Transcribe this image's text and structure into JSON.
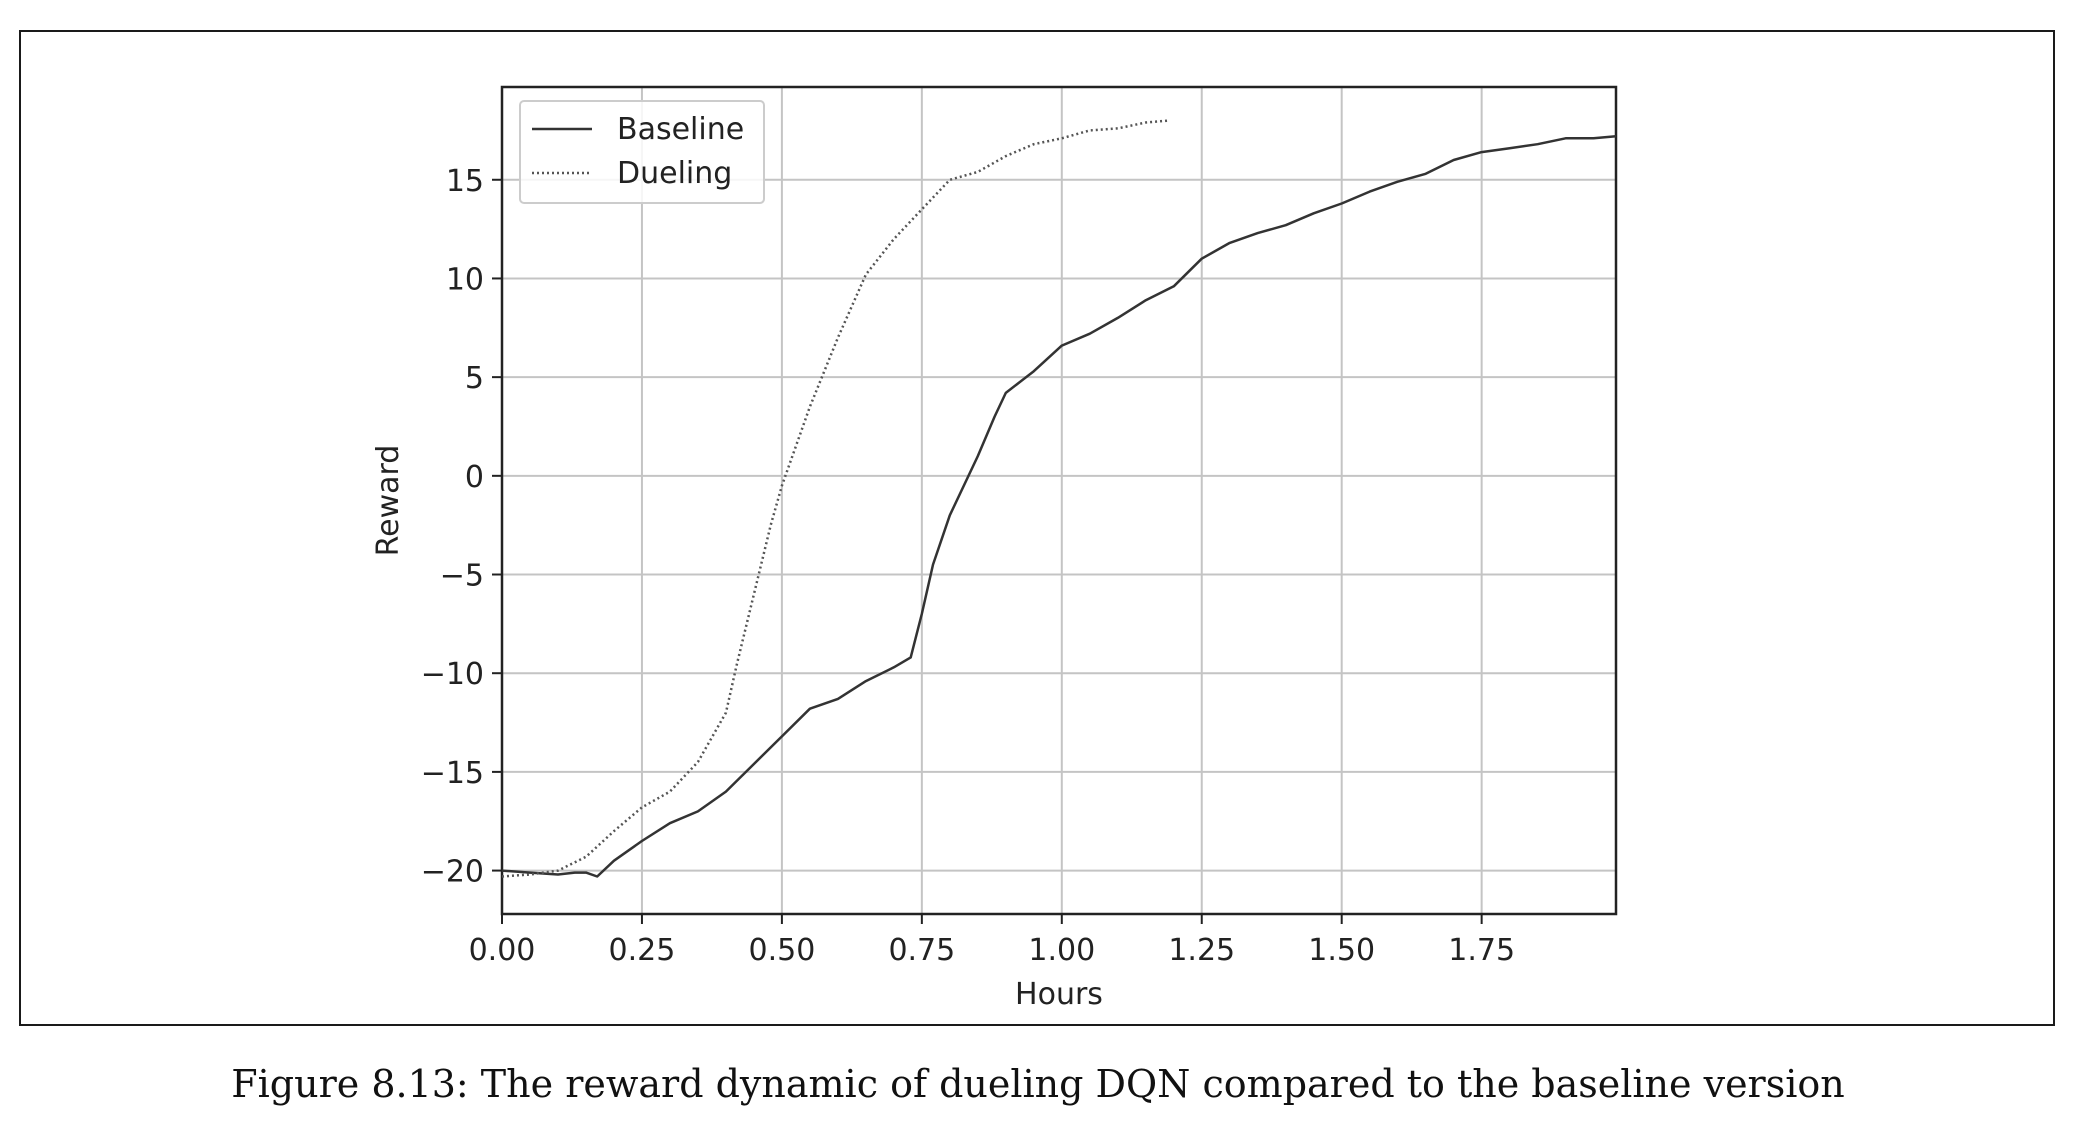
{
  "figure": {
    "caption": "Figure 8.13: The reward dynamic of dueling DQN compared to the baseline version"
  },
  "chart_data": {
    "type": "line",
    "title": "",
    "xlabel": "Hours",
    "ylabel": "Reward",
    "xlim": [
      0.0,
      1.99
    ],
    "ylim": [
      -22.2,
      19.7
    ],
    "xticks": [
      0.0,
      0.25,
      0.5,
      0.75,
      1.0,
      1.25,
      1.5,
      1.75
    ],
    "xtick_labels": [
      "0.00",
      "0.25",
      "0.50",
      "0.75",
      "1.00",
      "1.25",
      "1.50",
      "1.75"
    ],
    "yticks": [
      -20,
      -15,
      -10,
      -5,
      0,
      5,
      10,
      15
    ],
    "ytick_labels": [
      "−20",
      "−15",
      "−10",
      "−5",
      "0",
      "5",
      "10",
      "15"
    ],
    "grid": true,
    "legend_position": "top-left",
    "series": [
      {
        "name": "Baseline",
        "style": "solid",
        "color": "#333333",
        "x": [
          0.0,
          0.05,
          0.1,
          0.13,
          0.15,
          0.17,
          0.2,
          0.25,
          0.3,
          0.35,
          0.4,
          0.45,
          0.5,
          0.55,
          0.6,
          0.65,
          0.7,
          0.73,
          0.75,
          0.77,
          0.8,
          0.85,
          0.88,
          0.9,
          0.95,
          1.0,
          1.05,
          1.1,
          1.15,
          1.2,
          1.25,
          1.3,
          1.35,
          1.4,
          1.45,
          1.5,
          1.55,
          1.6,
          1.65,
          1.7,
          1.75,
          1.8,
          1.85,
          1.9,
          1.95,
          1.99
        ],
        "y": [
          -20.0,
          -20.1,
          -20.2,
          -20.1,
          -20.1,
          -20.3,
          -19.5,
          -18.5,
          -17.6,
          -17.0,
          -16.0,
          -14.6,
          -13.2,
          -11.8,
          -11.3,
          -10.4,
          -9.7,
          -9.2,
          -7.0,
          -4.5,
          -2.0,
          1.0,
          3.0,
          4.2,
          5.3,
          6.6,
          7.2,
          8.0,
          8.9,
          9.6,
          11.0,
          11.8,
          12.3,
          12.7,
          13.3,
          13.8,
          14.4,
          14.9,
          15.3,
          16.0,
          16.4,
          16.6,
          16.8,
          17.1,
          17.1,
          17.2
        ]
      },
      {
        "name": "Dueling",
        "style": "dotted",
        "color": "#555555",
        "x": [
          0.0,
          0.05,
          0.1,
          0.15,
          0.2,
          0.25,
          0.3,
          0.35,
          0.4,
          0.42,
          0.45,
          0.48,
          0.5,
          0.55,
          0.6,
          0.65,
          0.7,
          0.75,
          0.8,
          0.85,
          0.9,
          0.95,
          1.0,
          1.05,
          1.1,
          1.15,
          1.19
        ],
        "y": [
          -20.3,
          -20.2,
          -20.0,
          -19.3,
          -18.0,
          -16.8,
          -16.0,
          -14.5,
          -12.0,
          -9.5,
          -6.0,
          -2.5,
          -0.5,
          3.5,
          7.0,
          10.2,
          12.0,
          13.5,
          15.0,
          15.4,
          16.2,
          16.8,
          17.1,
          17.5,
          17.6,
          17.9,
          18.0
        ]
      }
    ]
  }
}
